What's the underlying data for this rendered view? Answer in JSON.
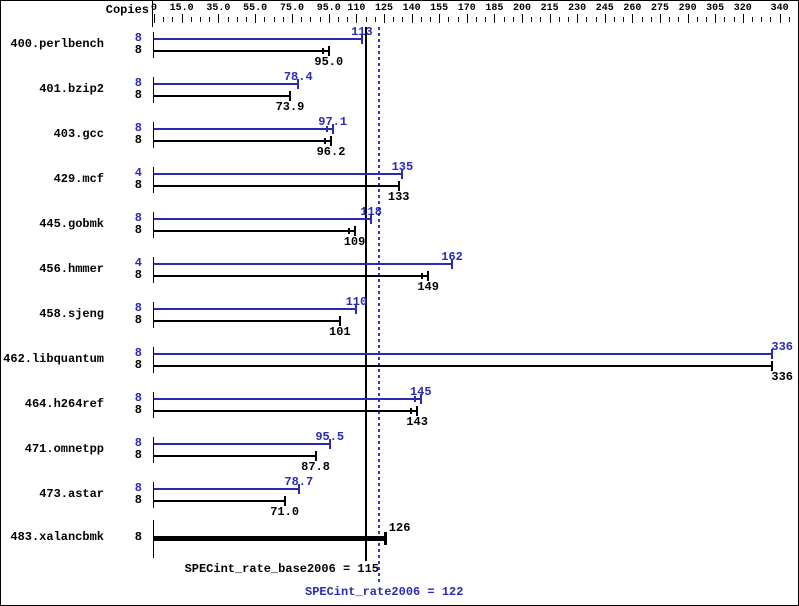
{
  "header": {
    "copies_label": "Copies"
  },
  "colors": {
    "peak_blue": "#2a2ab4",
    "base_black": "#000000",
    "dotted_line_blue": "#3535cd",
    "solid_line_black": "#000000",
    "background": "#ffffff"
  },
  "axis": {
    "labels": [
      {
        "text": "0",
        "value": 0
      },
      {
        "text": "15.0",
        "value": 15
      },
      {
        "text": "35.0",
        "value": 35
      },
      {
        "text": "55.0",
        "value": 55
      },
      {
        "text": "75.0",
        "value": 75
      },
      {
        "text": "95.0",
        "value": 95
      },
      {
        "text": "110",
        "value": 110
      },
      {
        "text": "125",
        "value": 125
      },
      {
        "text": "140",
        "value": 140
      },
      {
        "text": "155",
        "value": 155
      },
      {
        "text": "170",
        "value": 170
      },
      {
        "text": "185",
        "value": 185
      },
      {
        "text": "200",
        "value": 200
      },
      {
        "text": "215",
        "value": 215
      },
      {
        "text": "230",
        "value": 230
      },
      {
        "text": "245",
        "value": 245
      },
      {
        "text": "260",
        "value": 260
      },
      {
        "text": "275",
        "value": 275
      },
      {
        "text": "290",
        "value": 290
      },
      {
        "text": "305",
        "value": 305
      },
      {
        "text": "320",
        "value": 320
      },
      {
        "text": "340",
        "value": 340
      }
    ],
    "minor_tick_step": 5,
    "minor_tick_max": 345
  },
  "benchmarks": [
    {
      "name": "400.perlbench",
      "peak": {
        "copies": "8",
        "value": 113,
        "label": "113",
        "whisker": false
      },
      "base": {
        "copies": "8",
        "value": 95,
        "label": "95.0",
        "whisker": true
      }
    },
    {
      "name": "401.bzip2",
      "peak": {
        "copies": "8",
        "value": 78.4,
        "label": "78.4",
        "whisker": false
      },
      "base": {
        "copies": "8",
        "value": 73.9,
        "label": "73.9",
        "whisker": false
      }
    },
    {
      "name": "403.gcc",
      "peak": {
        "copies": "8",
        "value": 97.1,
        "label": "97.1",
        "whisker": true
      },
      "base": {
        "copies": "8",
        "value": 96.2,
        "label": "96.2",
        "whisker": true
      }
    },
    {
      "name": "429.mcf",
      "peak": {
        "copies": "4",
        "value": 135,
        "label": "135",
        "whisker": false
      },
      "base": {
        "copies": "8",
        "value": 133,
        "label": "133",
        "whisker": false
      }
    },
    {
      "name": "445.gobmk",
      "peak": {
        "copies": "8",
        "value": 118,
        "label": "118",
        "whisker": false
      },
      "base": {
        "copies": "8",
        "value": 109,
        "label": "109",
        "whisker": true
      }
    },
    {
      "name": "456.hmmer",
      "peak": {
        "copies": "4",
        "value": 162,
        "label": "162",
        "whisker": false
      },
      "base": {
        "copies": "8",
        "value": 149,
        "label": "149",
        "whisker": true
      }
    },
    {
      "name": "458.sjeng",
      "peak": {
        "copies": "8",
        "value": 110,
        "label": "110",
        "whisker": false
      },
      "base": {
        "copies": "8",
        "value": 101,
        "label": "101",
        "whisker": false
      }
    },
    {
      "name": "462.libquantum",
      "peak": {
        "copies": "8",
        "value": 336,
        "label": "336",
        "whisker": false
      },
      "base": {
        "copies": "8",
        "value": 336,
        "label": "336",
        "whisker": false
      }
    },
    {
      "name": "464.h264ref",
      "peak": {
        "copies": "8",
        "value": 145,
        "label": "145",
        "whisker": true
      },
      "base": {
        "copies": "8",
        "value": 143,
        "label": "143",
        "whisker": true
      }
    },
    {
      "name": "471.omnetpp",
      "peak": {
        "copies": "8",
        "value": 95.5,
        "label": "95.5",
        "whisker": false
      },
      "base": {
        "copies": "8",
        "value": 87.8,
        "label": "87.8",
        "whisker": false
      }
    },
    {
      "name": "473.astar",
      "peak": {
        "copies": "8",
        "value": 78.7,
        "label": "78.7",
        "whisker": false
      },
      "base": {
        "copies": "8",
        "value": 71,
        "label": "71.0",
        "whisker": false
      }
    },
    {
      "name": "483.xalancbmk",
      "merged": true,
      "copies": "8",
      "value": 126,
      "label": "126"
    }
  ],
  "summary": {
    "base_text": "SPECint_rate_base2006 = 115",
    "base_value": 115,
    "peak_text": "SPECint_rate2006 = 122",
    "peak_value": 122
  },
  "chart_data": {
    "type": "bar",
    "orientation": "horizontal",
    "title": "",
    "xlabel": "",
    "ylabel": "Copies",
    "xlim": [
      0,
      348
    ],
    "grid": false,
    "axis_tick_labels": [
      0,
      15.0,
      35.0,
      55.0,
      75.0,
      95.0,
      110,
      125,
      140,
      155,
      170,
      185,
      200,
      215,
      230,
      245,
      260,
      275,
      290,
      305,
      320,
      340
    ],
    "categories": [
      "400.perlbench",
      "401.bzip2",
      "403.gcc",
      "429.mcf",
      "445.gobmk",
      "456.hmmer",
      "458.sjeng",
      "462.libquantum",
      "464.h264ref",
      "471.omnetpp",
      "473.astar",
      "483.xalancbmk"
    ],
    "series": [
      {
        "name": "peak (SPECint_rate2006)",
        "color": "#2a2ab4",
        "copies": [
          8,
          8,
          8,
          4,
          8,
          4,
          8,
          8,
          8,
          8,
          8,
          8
        ],
        "values": [
          113,
          78.4,
          97.1,
          135,
          118,
          162,
          110,
          336,
          145,
          95.5,
          78.7,
          126
        ]
      },
      {
        "name": "base (SPECint_rate_base2006)",
        "color": "#000000",
        "copies": [
          8,
          8,
          8,
          8,
          8,
          8,
          8,
          8,
          8,
          8,
          8,
          8
        ],
        "values": [
          95.0,
          73.9,
          96.2,
          133,
          109,
          149,
          101,
          336,
          143,
          87.8,
          71.0,
          126
        ]
      }
    ],
    "reference_lines": [
      {
        "label": "SPECint_rate_base2006 = 115",
        "value": 115,
        "style": "solid",
        "color": "#000000"
      },
      {
        "label": "SPECint_rate2006 = 122",
        "value": 122,
        "style": "dotted",
        "color": "#3535cd"
      }
    ],
    "notes": "483.xalancbmk shows a single merged thick bar (base = peak = 126). Small double end-ticks on some bars are min/max run markers."
  }
}
